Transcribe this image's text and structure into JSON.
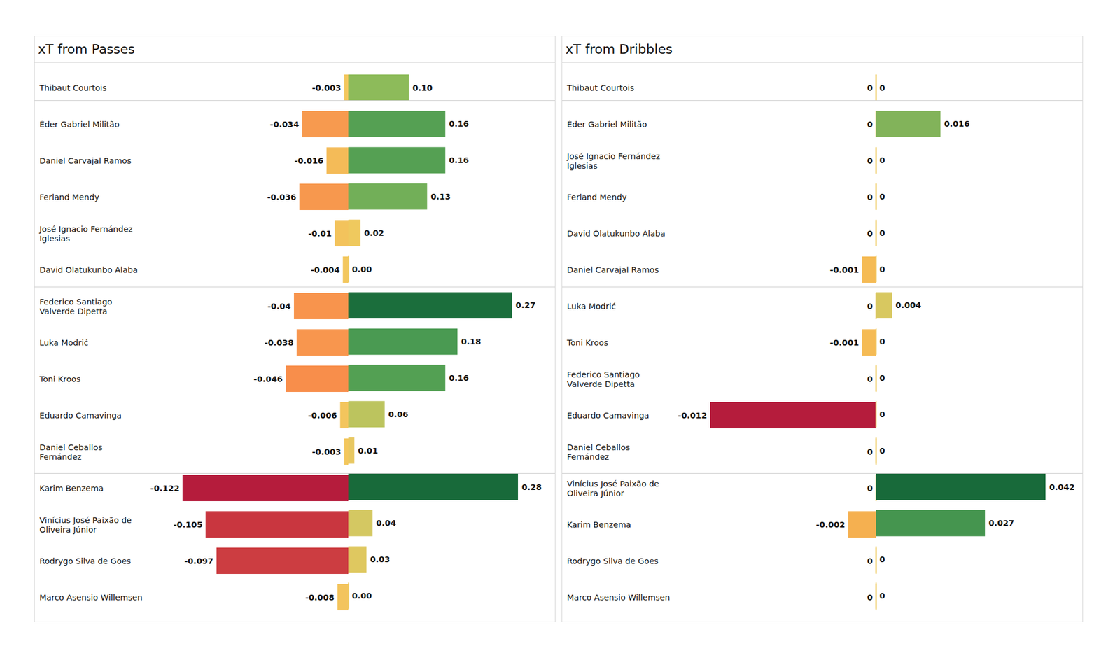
{
  "chart_data": [
    {
      "type": "bar",
      "title": "xT from Passes",
      "orientation": "horizontal",
      "data_labels": true,
      "tick_labels": false,
      "categories": [
        "Thibaut Courtois",
        "Éder Gabriel Militão",
        "Daniel Carvajal Ramos",
        "Ferland Mendy",
        "José Ignacio Fernández Iglesias",
        "David Olatukunbo Alaba",
        "Federico Santiago Valverde Dipetta",
        "Luka Modrić",
        "Toni Kroos",
        "Eduardo Camavinga",
        "Daniel Ceballos Fernández",
        "Karim Benzema",
        "Vinícius José Paixão de Oliveira Júnior",
        "Rodrygo Silva de Goes",
        "Marco Asensio Willemsen"
      ],
      "groups": [
        1,
        5,
        5,
        4
      ],
      "series": [
        {
          "values": [
            -0.003,
            -0.034,
            -0.016,
            -0.036,
            -0.01,
            -0.004,
            -0.04,
            -0.038,
            -0.046,
            -0.006,
            -0.003,
            -0.122,
            -0.105,
            -0.097,
            -0.008
          ],
          "colors": [
            "#f3c75e",
            "#f79a4f",
            "#f4bb58",
            "#f7984e",
            "#f3c35c",
            "#f3c75e",
            "#f8944d",
            "#f8964e",
            "#f88e4b",
            "#f3c55d",
            "#f3c75e",
            "#b51c3c",
            "#c9363f",
            "#cc3d41",
            "#f3c45d"
          ],
          "xlim": [
            -0.122,
            0
          ]
        },
        {
          "values": [
            0.1,
            0.16,
            0.16,
            0.13,
            0.02,
            0.0,
            0.27,
            0.18,
            0.16,
            0.06,
            0.01,
            0.28,
            0.04,
            0.03,
            0.0
          ],
          "value_labels": [
            "0.10",
            "0.16",
            "0.16",
            "0.13",
            "0.02",
            "0.00",
            "0.27",
            "0.18",
            "0.16",
            "0.06",
            "0.01",
            "0.28",
            "0.04",
            "0.03",
            "0.00"
          ],
          "colors": [
            "#8dbb5a",
            "#55a053",
            "#55a053",
            "#72af58",
            "#efc95e",
            "#eecb60",
            "#1b6e3c",
            "#4a9a52",
            "#53a053",
            "#bcc45e",
            "#e8c862",
            "#186a3a",
            "#d4c862",
            "#dfc860",
            "#eecb60"
          ],
          "xlim": [
            0,
            0.28
          ]
        }
      ]
    },
    {
      "type": "bar",
      "title": "xT from Dribbles",
      "orientation": "horizontal",
      "data_labels": true,
      "tick_labels": false,
      "categories": [
        "Thibaut Courtois",
        "Éder Gabriel Militão",
        "José Ignacio Fernández Iglesias",
        "Ferland Mendy",
        "David Olatukunbo Alaba",
        "Daniel Carvajal Ramos",
        "Luka Modrić",
        "Toni Kroos",
        "Federico Santiago Valverde Dipetta",
        "Eduardo Camavinga",
        "Daniel Ceballos Fernández",
        "Vinícius José Paixão de Oliveira Júnior",
        "Karim Benzema",
        "Rodrygo Silva de Goes",
        "Marco Asensio Willemsen"
      ],
      "groups": [
        1,
        5,
        5,
        4
      ],
      "series": [
        {
          "values": [
            0,
            0,
            0,
            0,
            0,
            -0.001,
            0,
            -0.001,
            0,
            -0.012,
            0,
            0,
            -0.002,
            0,
            0
          ],
          "colors": [
            "#eecb60",
            "#eecb60",
            "#eecb60",
            "#eecb60",
            "#eecb60",
            "#f5bb55",
            "#eecb60",
            "#f5bb55",
            "#eecb60",
            "#b51c3c",
            "#eecb60",
            "#eecb60",
            "#f5b050",
            "#eecb60",
            "#eecb60"
          ],
          "xlim": [
            -0.012,
            0
          ]
        },
        {
          "values": [
            0,
            0.016,
            0,
            0,
            0,
            0,
            0.004,
            0,
            0,
            0,
            0,
            0.042,
            0.027,
            0,
            0
          ],
          "colors": [
            "#eecb60",
            "#82b35a",
            "#eecb60",
            "#eecb60",
            "#eecb60",
            "#eecb60",
            "#d8c860",
            "#eecb60",
            "#eecb60",
            "#eecb60",
            "#eecb60",
            "#186a3a",
            "#45954f",
            "#eecb60",
            "#eecb60"
          ],
          "xlim": [
            0,
            0.042
          ]
        }
      ]
    }
  ]
}
